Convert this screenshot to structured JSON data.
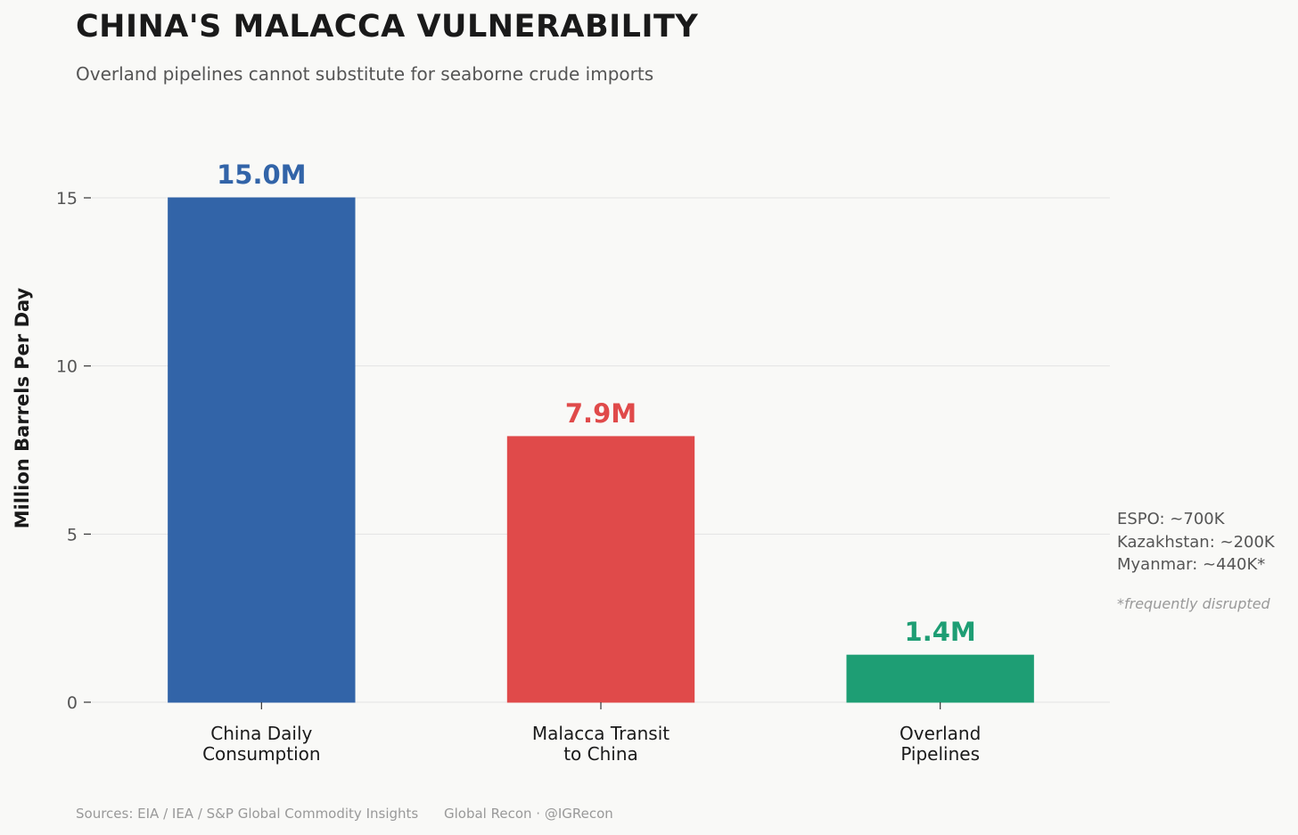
{
  "title": "CHINA'S MALACCA VULNERABILITY",
  "subtitle": "Overland pipelines cannot substitute for seaborne crude imports",
  "chart_data": {
    "type": "bar",
    "categories": [
      [
        "China Daily",
        "Consumption"
      ],
      [
        "Malacca Transit",
        "to China"
      ],
      [
        "Overland",
        "Pipelines"
      ]
    ],
    "values": [
      15.0,
      7.9,
      1.4
    ],
    "value_labels": [
      "15.0M",
      "7.9M",
      "1.4M"
    ],
    "colors": [
      "#3264a8",
      "#e04a4a",
      "#1e9e74"
    ],
    "ylabel": "Million Barrels Per Day",
    "ylim": [
      0,
      15
    ],
    "yticks": [
      0,
      5,
      10,
      15
    ],
    "grid": true
  },
  "annotation": {
    "lines": [
      "ESPO: ~700K",
      "Kazakhstan: ~200K",
      "Myanmar: ~440K*"
    ],
    "note": "*frequently disrupted"
  },
  "footer": {
    "sources": "Sources: EIA / IEA / S&P Global Commodity Insights",
    "credit": "Global Recon · @IGRecon"
  }
}
